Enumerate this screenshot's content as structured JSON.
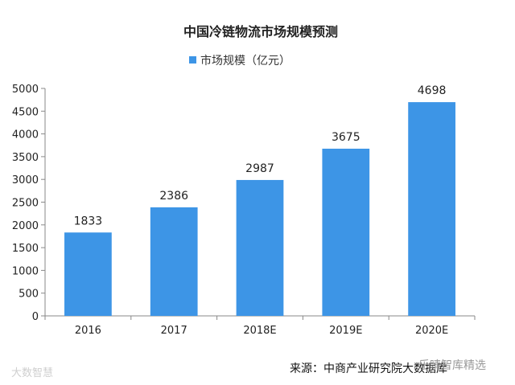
{
  "chart_data": {
    "type": "bar",
    "title": "中国冷链物流市场规模预测",
    "categories": [
      "2016",
      "2017",
      "2018E",
      "2019E",
      "2020E"
    ],
    "series": [
      {
        "name": "市场规模（亿元）",
        "values": [
          1833,
          2386,
          2987,
          3675,
          4698
        ]
      }
    ],
    "ylim": [
      0,
      5000
    ],
    "yticks": [
      0,
      500,
      1000,
      1500,
      2000,
      2500,
      3000,
      3500,
      4000,
      4500,
      5000
    ],
    "legend_position": "top",
    "grid": false,
    "bar_color": "#3d95e6",
    "data_labels": true
  },
  "source_text": "来源：中商产业研究院大数据库",
  "watermark_left": "大数智慧",
  "watermark_right": "乐晴智库精选"
}
